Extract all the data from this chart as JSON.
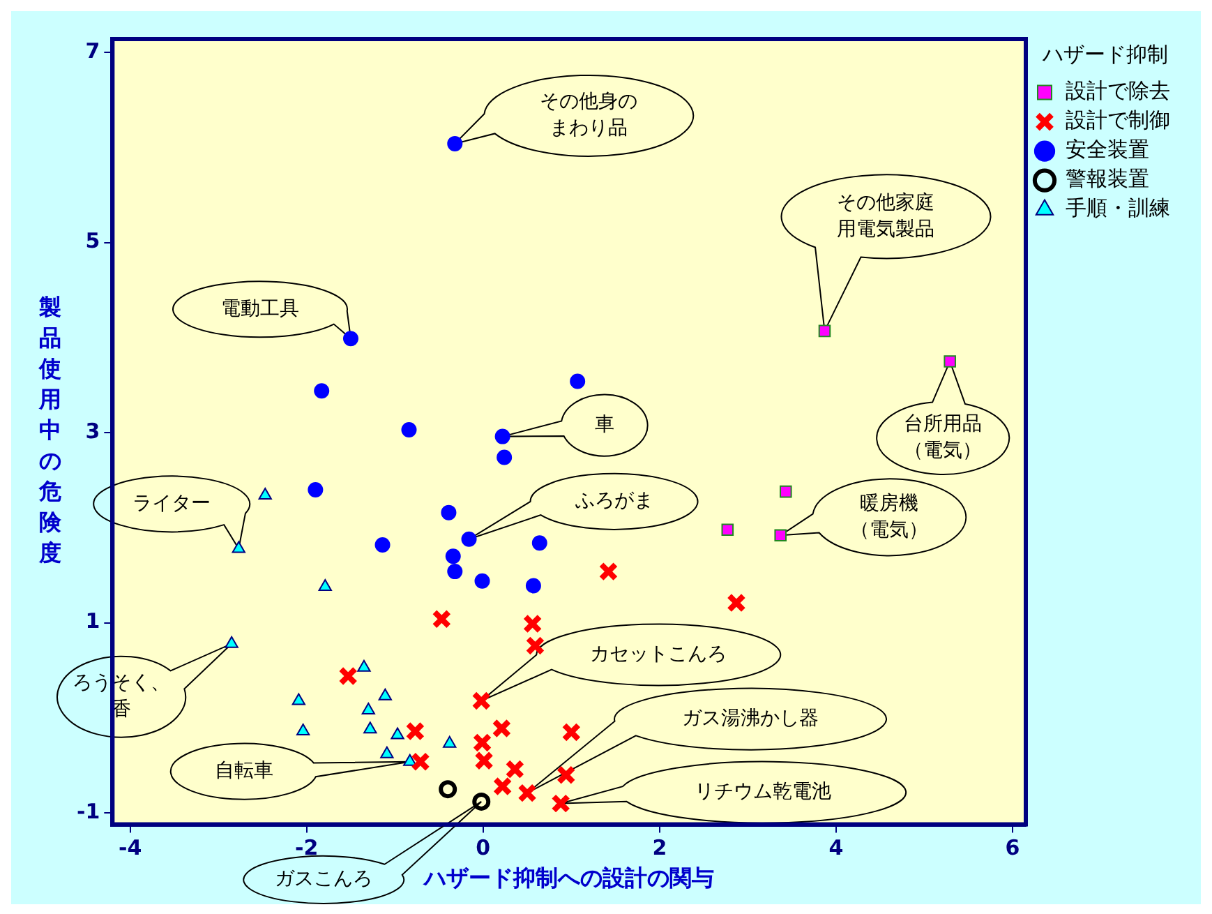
{
  "chart_data": {
    "type": "scatter",
    "xlabel": "ハザード抑制への設計の関与",
    "ylabel": "製品使用中の危険度",
    "legend_title": "ハザード抑制",
    "xlim": [
      -4.2,
      6.15
    ],
    "xticks": [
      -4,
      -2,
      0,
      2,
      4,
      6
    ],
    "ylim": [
      -1.12,
      7.14
    ],
    "yticks": [
      -1,
      1,
      3,
      5,
      7
    ],
    "grid": false,
    "legend": "top right",
    "series": [
      {
        "name": "設計で除去",
        "color": "#ff00ff",
        "marker": "square",
        "x": [
          3.87,
          5.29,
          3.43,
          2.77,
          3.37
        ],
        "values": [
          4.07,
          3.75,
          2.38,
          1.98,
          1.92
        ]
      },
      {
        "name": "設計で制御",
        "color": "#ff0000",
        "marker": "cross",
        "x": [
          -0.47,
          0.56,
          0.59,
          1.42,
          2.87,
          -1.53,
          -0.02,
          -0.77,
          0.21,
          1.0,
          -0.01,
          0.01,
          -0.71,
          0.36,
          0.94,
          0.22,
          0.5,
          0.88
        ],
        "values": [
          1.04,
          0.99,
          0.76,
          1.54,
          1.21,
          0.44,
          0.18,
          -0.14,
          -0.11,
          -0.15,
          -0.26,
          -0.45,
          -0.46,
          -0.54,
          -0.6,
          -0.72,
          -0.79,
          -0.9
        ]
      },
      {
        "name": "安全装置",
        "color": "#0000ff",
        "marker": "circle",
        "x": [
          -0.32,
          -1.5,
          -1.83,
          1.07,
          -0.84,
          0.22,
          0.24,
          -1.9,
          -0.39,
          -0.16,
          -1.14,
          0.64,
          -0.34,
          -0.32,
          -0.01,
          0.57
        ],
        "values": [
          6.04,
          3.99,
          3.44,
          3.54,
          3.03,
          2.96,
          2.74,
          2.4,
          2.16,
          1.88,
          1.82,
          1.84,
          1.7,
          1.54,
          1.44,
          1.39
        ]
      },
      {
        "name": "警報装置",
        "color": "#000000",
        "marker": "circle",
        "x": [
          -0.4,
          -0.02
        ],
        "values": [
          -0.75,
          -0.88
        ]
      },
      {
        "name": "手順・訓練",
        "color": "#00ffff",
        "marker": "triangle",
        "x": [
          -2.47,
          -2.77,
          -1.79,
          -2.85,
          -1.35,
          -1.11,
          -2.09,
          -1.3,
          -2.04,
          -1.28,
          -0.97,
          -0.38,
          -1.09,
          -0.83
        ],
        "values": [
          2.34,
          1.78,
          1.38,
          0.78,
          0.53,
          0.23,
          0.18,
          0.08,
          -0.14,
          -0.12,
          -0.18,
          -0.27,
          -0.38,
          -0.46
        ]
      }
    ],
    "annotations": [
      "その他身のまわり品",
      "電動工具",
      "その他家庭用電気製品",
      "台所用品（電気）",
      "車",
      "ふろがま",
      "暖房機（電気）",
      "ライター",
      "ろうそく、香",
      "カセットこんろ",
      "ガス湯沸かし器",
      "リチウム乾電池",
      "自転車",
      "ガスこんろ"
    ]
  }
}
